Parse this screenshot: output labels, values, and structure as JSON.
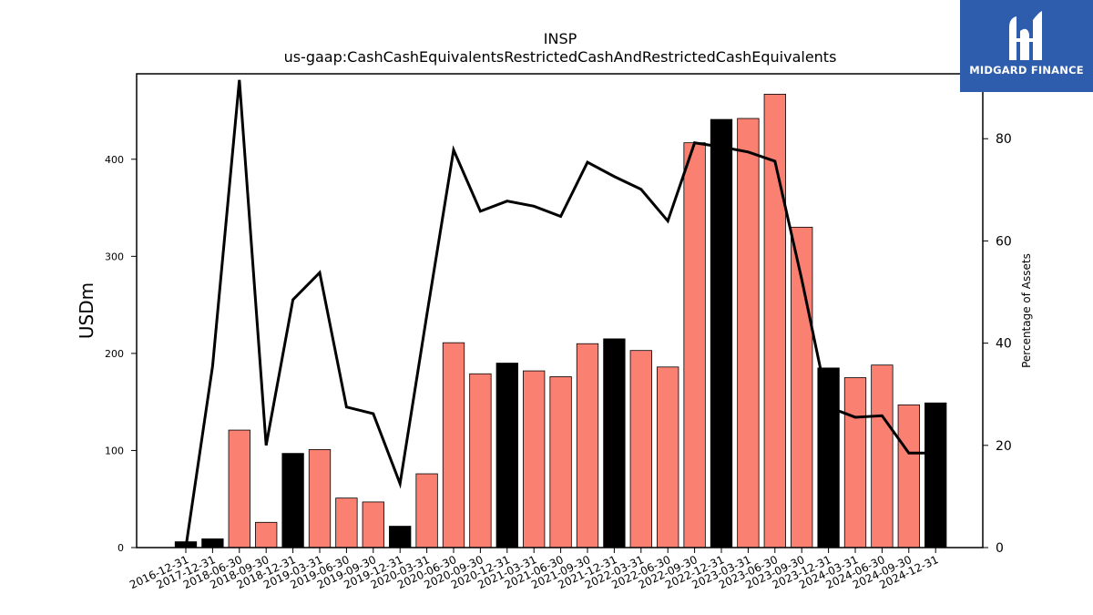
{
  "brand": {
    "name": "MIDGARD FINANCE",
    "colors": {
      "background": "#2f5dad",
      "text": "#ffffff"
    }
  },
  "chart_data": {
    "type": "bar",
    "title": "INSP",
    "subtitle": "us-gaap:CashCashEquivalentsRestrictedCashAndRestrictedCashEquivalents",
    "ylabel": "USDm",
    "ylabel_right": "Percentage of Assets",
    "ylim": [
      0,
      488
    ],
    "ylim_right": [
      0,
      92.7
    ],
    "yticks": [
      0,
      100,
      200,
      300,
      400
    ],
    "yticks_right": [
      0,
      20,
      40,
      60,
      80
    ],
    "grid": false,
    "colors": {
      "annual": "#000000",
      "quarterly": "#fa8072",
      "line": "#000000"
    },
    "categories": [
      "2016-12-31",
      "2017-12-31",
      "2018-06-30",
      "2018-09-30",
      "2018-12-31",
      "2019-03-31",
      "2019-06-30",
      "2019-09-30",
      "2019-12-31",
      "2020-03-31",
      "2020-06-30",
      "2020-09-30",
      "2020-12-31",
      "2021-03-31",
      "2021-06-30",
      "2021-09-30",
      "2021-12-31",
      "2022-03-31",
      "2022-06-30",
      "2022-09-30",
      "2022-12-31",
      "2023-03-31",
      "2023-06-30",
      "2023-09-30",
      "2023-12-31",
      "2024-03-31",
      "2024-06-30",
      "2024-09-30",
      "2024-12-31"
    ],
    "series": [
      {
        "type": "bar",
        "values": [
          6,
          9,
          121,
          26,
          97,
          101,
          51,
          47,
          22,
          76,
          211,
          179,
          190,
          182,
          176,
          210,
          215,
          203,
          186,
          417,
          441,
          442,
          467,
          330,
          185,
          175,
          188,
          147,
          149
        ],
        "is_annual": [
          true,
          true,
          false,
          false,
          true,
          false,
          false,
          false,
          true,
          false,
          false,
          false,
          true,
          false,
          false,
          false,
          true,
          false,
          false,
          false,
          true,
          false,
          false,
          false,
          true,
          false,
          false,
          false,
          true
        ]
      },
      {
        "type": "line",
        "axis": "right",
        "values": [
          0,
          35.5,
          91.5,
          20,
          48.5,
          53.8,
          27.5,
          26.2,
          12.5,
          45.5,
          77.8,
          65.8,
          67.8,
          66.8,
          64.8,
          75.4,
          72.6,
          70.1,
          63.9,
          79.2,
          78.4,
          77.4,
          75.6,
          52.5,
          27.5,
          25.5,
          25.8,
          18.5,
          18.5
        ]
      }
    ]
  }
}
